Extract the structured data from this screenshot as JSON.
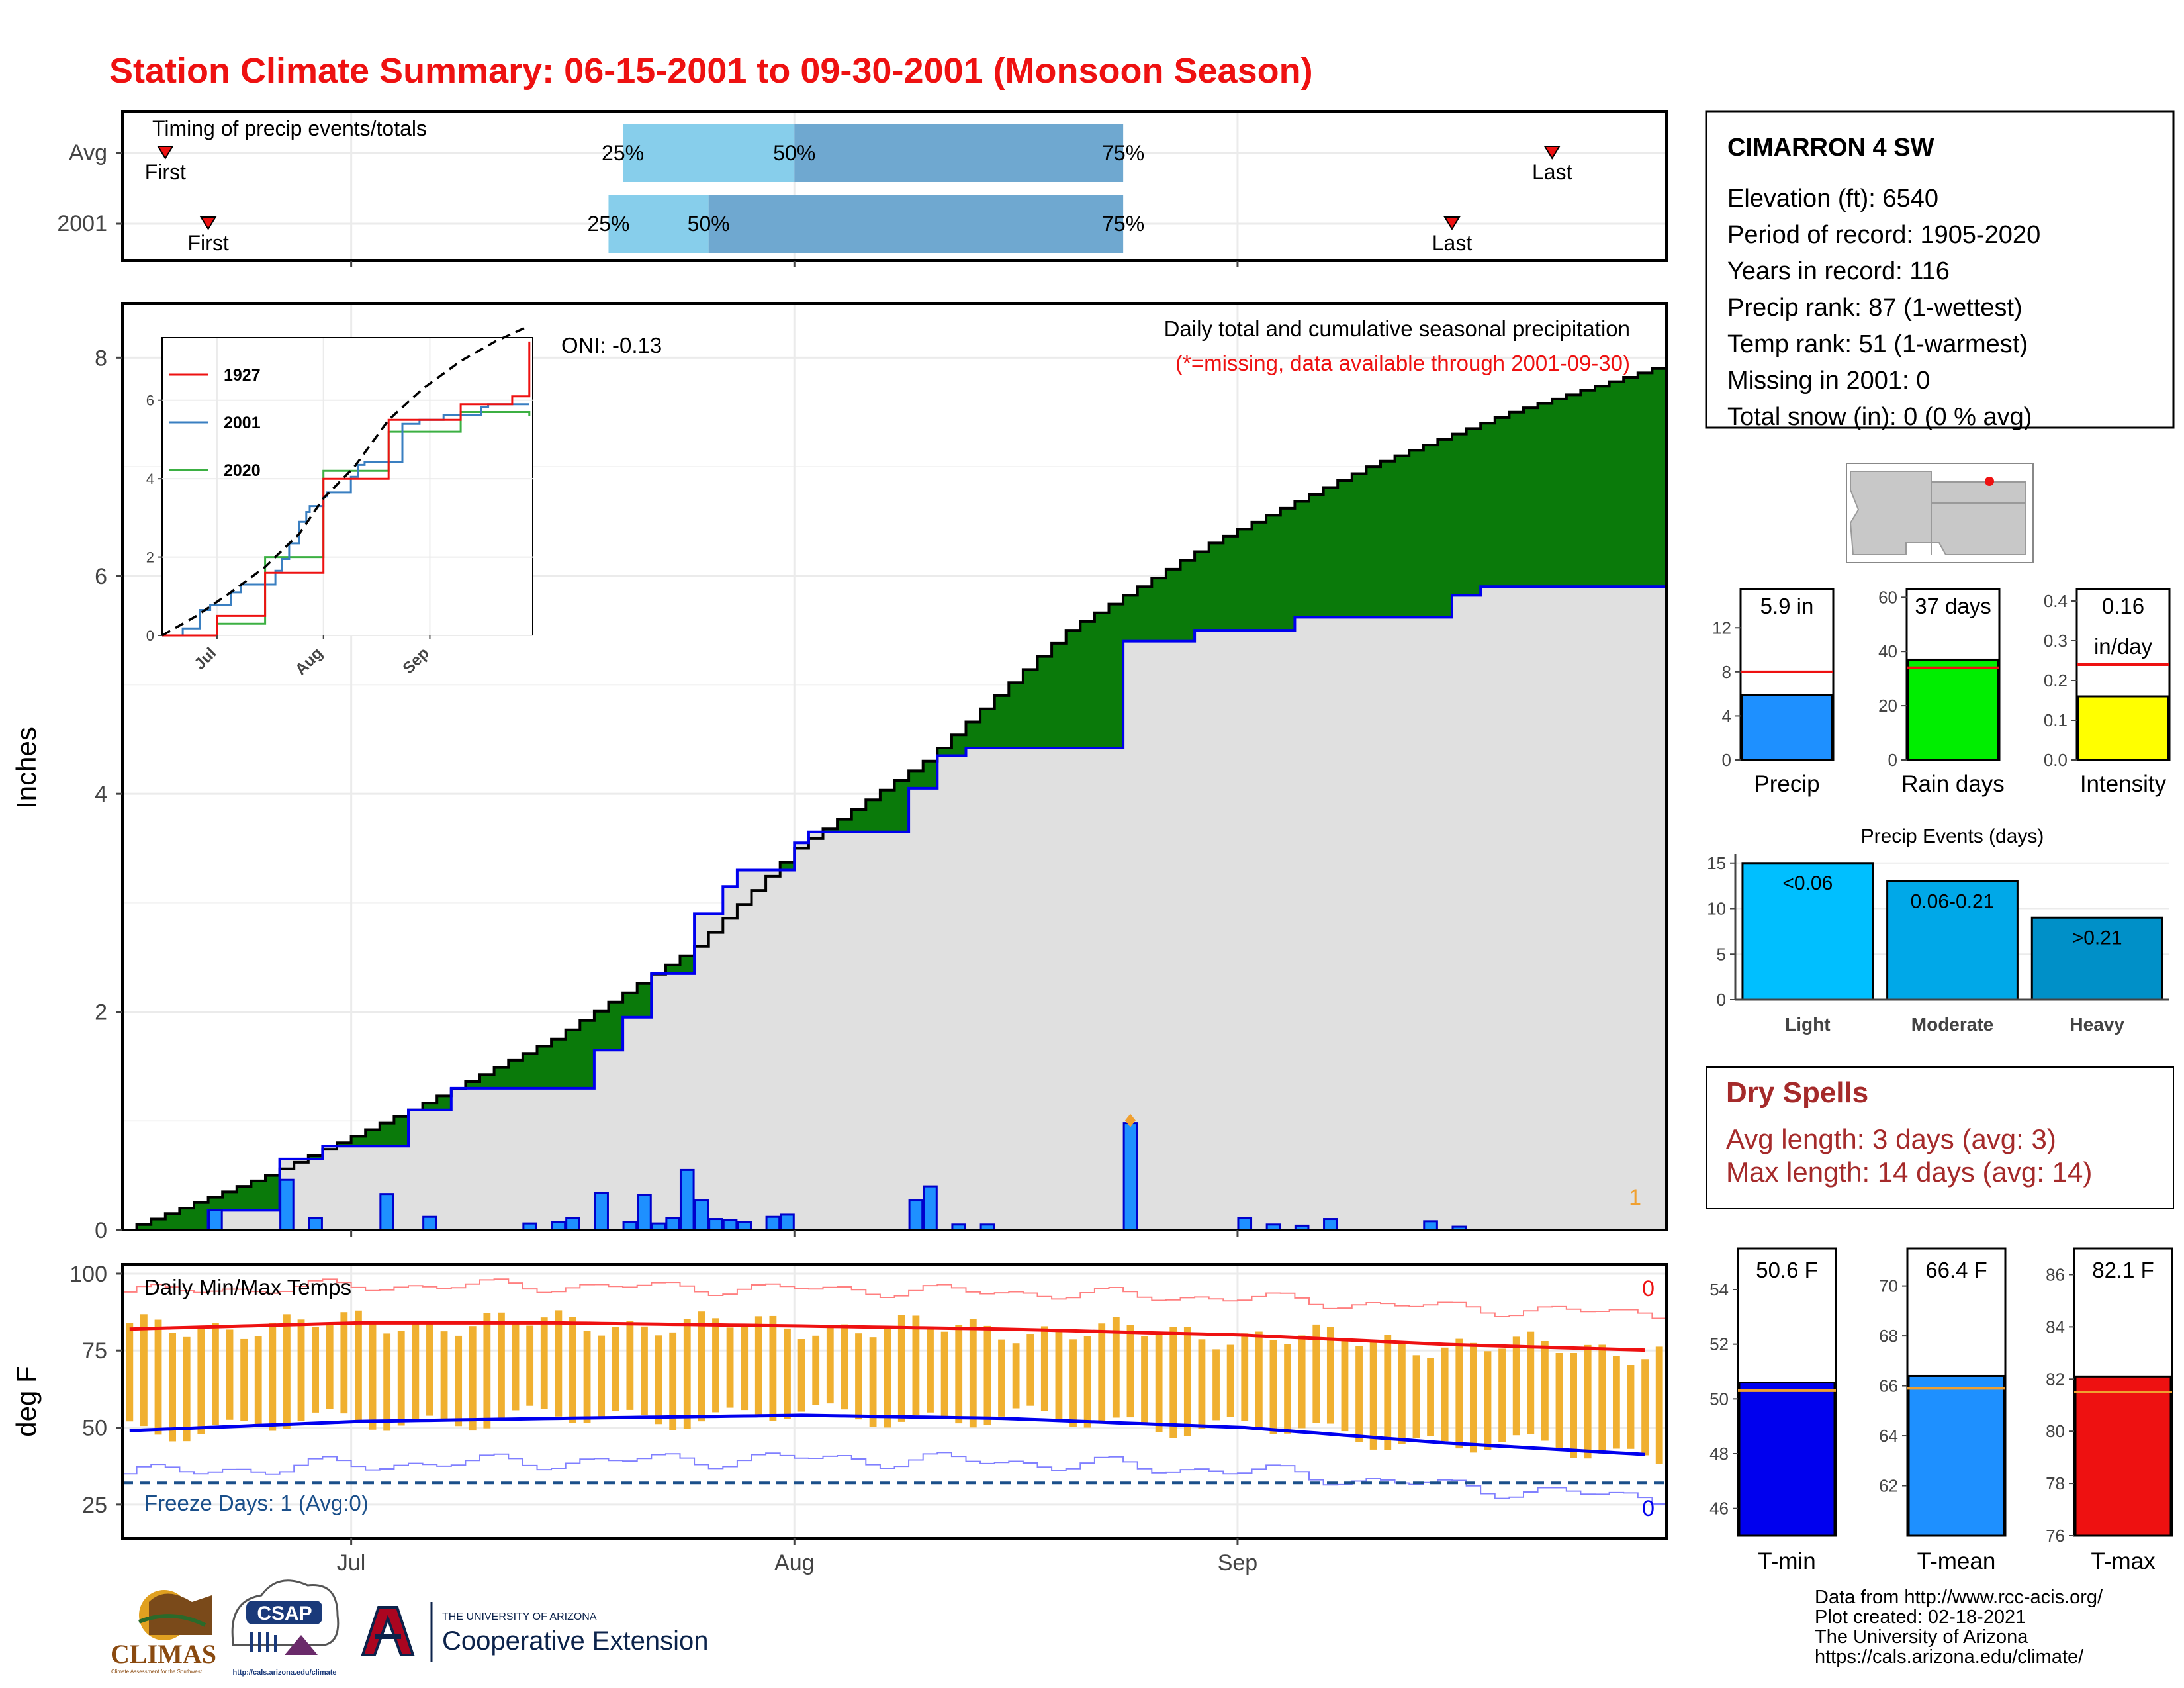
{
  "page": {
    "title": "Station Climate Summary: 06-15-2001 to 09-30-2001 (Monsoon Season)"
  },
  "colors": {
    "title_red": "#ee1111",
    "light_blue": "#87ceeb",
    "steel_blue": "#6fa8d0",
    "brown": "#8b5a00",
    "green": "#0a7a0a",
    "gray_fill": "#e0e0e0",
    "daily_bar": "#1e90ff",
    "tmax_red": "#ee1111",
    "tmin_blue": "#0000ee",
    "temp_bar": "#f0b030",
    "freeze_line": "#1a4f8a",
    "dry_spell": "#a52a2a",
    "rain_green": "#00ee00",
    "intensity_yellow": "#ffff00",
    "light_events": "#00bfff",
    "moderate_events": "#00a8e8",
    "heavy_events": "#0090c8"
  },
  "timing": {
    "panel_label": "Timing of precip events/totals",
    "rows": [
      {
        "name": "Avg",
        "first_date": "2001-06-18",
        "q25": "2001-07-20",
        "q50": "2001-08-01",
        "q75": "2001-08-24",
        "last_date": "2001-09-23",
        "first_label": "First",
        "last_label": "Last",
        "q25_label": "25%",
        "q50_label": "50%",
        "q75_label": "75%"
      },
      {
        "name": "2001",
        "first_date": "2001-06-21",
        "q25": "2001-07-19",
        "q50": "2001-07-26",
        "q75": "2001-08-24",
        "last_date": "2001-09-16",
        "first_label": "First",
        "last_label": "Last",
        "q25_label": "25%",
        "q50_label": "50%",
        "q75_label": "75%"
      }
    ]
  },
  "precip_panel": {
    "ylabel": "Inches",
    "y_ticks": [
      "0",
      "2",
      "4",
      "6",
      "8"
    ],
    "oni": "ONI: -0.13",
    "heading": "Daily total and cumulative seasonal precipitation",
    "missing_note": "(*=missing, data available through 2001-09-30)",
    "marker_count": "1"
  },
  "inset": {
    "y_ticks": [
      "0",
      "2",
      "4",
      "6"
    ],
    "x_ticks": [
      "Jul",
      "Aug",
      "Sep"
    ],
    "legend": [
      {
        "label": "1927",
        "color": "#ee1111"
      },
      {
        "label": "2001",
        "color": "#3a7fc1"
      },
      {
        "label": "2020",
        "color": "#3cb043"
      }
    ]
  },
  "temp_panel": {
    "ylabel": "deg F",
    "y_ticks": [
      "25",
      "50",
      "75",
      "100"
    ],
    "heading": "Daily Min/Max Temps",
    "freeze_label": "Freeze Days: 1 (Avg:0)",
    "count_top": "0",
    "count_bottom": "0"
  },
  "x_axis": {
    "ticks": [
      "Jul",
      "Aug",
      "Sep"
    ]
  },
  "station": {
    "name": "CIMARRON 4 SW",
    "lines": [
      "Elevation (ft): 6540",
      "Period of record: 1905-2020",
      "Years in record: 116",
      "Precip rank: 87 (1-wettest)",
      "Temp rank: 51 (1-warmest)",
      "Missing in 2001: 0",
      "Total snow (in): 0 (0 % avg)"
    ]
  },
  "summary_bars": [
    {
      "name": "Precip",
      "value_label": "5.9 in",
      "value": 5.9,
      "avg": 8.0,
      "ymax": 15.5,
      "ticks": [
        "0",
        "4",
        "8",
        "12"
      ],
      "tick_values": [
        0,
        4,
        8,
        12
      ],
      "color": "#1e90ff"
    },
    {
      "name": "Rain days",
      "value_label": "37 days",
      "value": 37,
      "avg": 34,
      "ymax": 63,
      "ticks": [
        "0",
        "20",
        "40",
        "60"
      ],
      "tick_values": [
        0,
        20,
        40,
        60
      ],
      "color": "#00ee00"
    },
    {
      "name": "Intensity",
      "value_label": "0.16",
      "value_label2": "in/day",
      "value": 0.16,
      "avg": 0.24,
      "ymax": 0.43,
      "ticks": [
        "0.0",
        "0.1",
        "0.2",
        "0.3",
        "0.4"
      ],
      "tick_values": [
        0,
        0.1,
        0.2,
        0.3,
        0.4
      ],
      "color": "#ffff00"
    }
  ],
  "events": {
    "title": "Precip Events (days)",
    "y_ticks": [
      "0",
      "5",
      "10",
      "15"
    ],
    "categories": [
      "Light",
      "Moderate",
      "Heavy"
    ],
    "bar_labels": [
      "<0.06",
      "0.06-0.21",
      ">0.21"
    ],
    "values": [
      15,
      13,
      9
    ]
  },
  "dry_spells": {
    "title": "Dry Spells",
    "avg_line": "Avg length: 3 days (avg: 3)",
    "max_line": "Max length: 14 days (avg: 14)"
  },
  "temp_bars": [
    {
      "name": "T-min",
      "value_label": "50.6 F",
      "value": 50.6,
      "avg": 50.3,
      "ymin": 45,
      "ymax": 55.5,
      "ticks": [
        "46",
        "48",
        "50",
        "52",
        "54"
      ],
      "tick_values": [
        46,
        48,
        50,
        52,
        54
      ],
      "color": "#0000ee"
    },
    {
      "name": "T-mean",
      "value_label": "66.4 F",
      "value": 66.4,
      "avg": 65.9,
      "ymin": 60,
      "ymax": 71.5,
      "ticks": [
        "62",
        "64",
        "66",
        "68",
        "70"
      ],
      "tick_values": [
        62,
        64,
        66,
        68,
        70
      ],
      "color": "#1e90ff"
    },
    {
      "name": "T-max",
      "value_label": "82.1 F",
      "value": 82.1,
      "avg": 81.5,
      "ymin": 76,
      "ymax": 87,
      "ticks": [
        "76",
        "78",
        "80",
        "82",
        "84",
        "86"
      ],
      "tick_values": [
        76,
        78,
        80,
        82,
        84,
        86
      ],
      "color": "#ee1111"
    }
  ],
  "logos": {
    "climas": "CLIMAS",
    "climas_sub": "Climate Assessment for the Southwest",
    "csap": "CSAP",
    "csap_url": "http://cals.arizona.edu/climate",
    "ua_small": "THE UNIVERSITY OF ARIZONA",
    "ua_big": "Cooperative Extension"
  },
  "credits": [
    "Data from http://www.rcc-acis.org/",
    "Plot created: 02-18-2021",
    "The University of Arizona",
    "https://cals.arizona.edu/climate/"
  ],
  "chart_data": {
    "type": "area",
    "title": "Station Climate Summary: 06-15-2001 to 09-30-2001 (Monsoon Season)",
    "ylabel": "Inches",
    "ylim": [
      0,
      8.5
    ],
    "x_start": "2001-06-15",
    "x_end": "2001-09-30",
    "series": [
      {
        "name": "Average cumulative",
        "dates": [
          "2001-06-15",
          "2001-06-25",
          "2001-07-05",
          "2001-07-15",
          "2001-07-25",
          "2001-08-01",
          "2001-08-10",
          "2001-08-20",
          "2001-08-30",
          "2001-09-10",
          "2001-09-20",
          "2001-09-30"
        ],
        "values": [
          0,
          0.5,
          1.1,
          1.75,
          2.6,
          3.5,
          4.3,
          5.5,
          6.3,
          7.0,
          7.5,
          7.9
        ]
      },
      {
        "name": "2001 cumulative",
        "dates": [
          "2001-06-15",
          "2001-06-21",
          "2001-06-26",
          "2001-06-29",
          "2001-07-05",
          "2001-07-08",
          "2001-07-18",
          "2001-07-20",
          "2001-07-22",
          "2001-07-25",
          "2001-07-27",
          "2001-07-28",
          "2001-08-01",
          "2001-08-02",
          "2001-08-09",
          "2001-08-11",
          "2001-08-13",
          "2001-08-24",
          "2001-08-29",
          "2001-09-05",
          "2001-09-16",
          "2001-09-18",
          "2001-09-30"
        ],
        "values": [
          0,
          0.18,
          0.65,
          0.77,
          1.1,
          1.3,
          1.65,
          1.95,
          2.35,
          2.9,
          3.15,
          3.3,
          3.55,
          3.65,
          4.05,
          4.35,
          4.42,
          5.4,
          5.5,
          5.62,
          5.82,
          5.9,
          5.9
        ]
      },
      {
        "name": "2001 daily",
        "dates": [
          "2001-06-21",
          "2001-06-26",
          "2001-06-28",
          "2001-07-03",
          "2001-07-06",
          "2001-07-13",
          "2001-07-15",
          "2001-07-16",
          "2001-07-18",
          "2001-07-20",
          "2001-07-21",
          "2001-07-22",
          "2001-07-23",
          "2001-07-24",
          "2001-07-25",
          "2001-07-26",
          "2001-07-27",
          "2001-07-28",
          "2001-07-30",
          "2001-07-31",
          "2001-08-09",
          "2001-08-10",
          "2001-08-12",
          "2001-08-14",
          "2001-08-24",
          "2001-09-01",
          "2001-09-03",
          "2001-09-05",
          "2001-09-07",
          "2001-09-14",
          "2001-09-16"
        ],
        "values": [
          0.18,
          0.46,
          0.11,
          0.33,
          0.12,
          0.06,
          0.07,
          0.11,
          0.34,
          0.07,
          0.32,
          0.06,
          0.11,
          0.55,
          0.27,
          0.1,
          0.09,
          0.07,
          0.12,
          0.14,
          0.27,
          0.4,
          0.05,
          0.05,
          0.98,
          0.11,
          0.05,
          0.04,
          0.1,
          0.08,
          0.03
        ]
      },
      {
        "name": "1927",
        "dates": [
          "2001-06-15",
          "2001-07-01",
          "2001-07-15",
          "2001-08-01",
          "2001-08-20",
          "2001-09-10",
          "2001-09-25",
          "2001-09-30"
        ],
        "values": [
          0,
          0.5,
          1.6,
          4.0,
          5.5,
          5.9,
          6.1,
          7.5
        ]
      },
      {
        "name": "2020",
        "dates": [
          "2001-06-15",
          "2001-07-01",
          "2001-07-15",
          "2001-08-01",
          "2001-08-20",
          "2001-09-10",
          "2001-09-30"
        ],
        "values": [
          0,
          0.3,
          2.0,
          4.2,
          5.2,
          5.7,
          5.6
        ]
      }
    ],
    "temperature": {
      "ylabel": "deg F",
      "ylim": [
        14,
        103
      ],
      "avg_max": {
        "dates": [
          "2001-06-15",
          "2001-07-01",
          "2001-07-15",
          "2001-08-01",
          "2001-08-15",
          "2001-09-01",
          "2001-09-15",
          "2001-09-30"
        ],
        "values": [
          82,
          84,
          84,
          83,
          82,
          80,
          77,
          75
        ]
      },
      "avg_min": {
        "dates": [
          "2001-06-15",
          "2001-07-01",
          "2001-07-15",
          "2001-08-01",
          "2001-08-15",
          "2001-09-01",
          "2001-09-15",
          "2001-09-30"
        ],
        "values": [
          49,
          52,
          53,
          54,
          53,
          50,
          45,
          41
        ]
      },
      "freeze_line": 32
    }
  }
}
